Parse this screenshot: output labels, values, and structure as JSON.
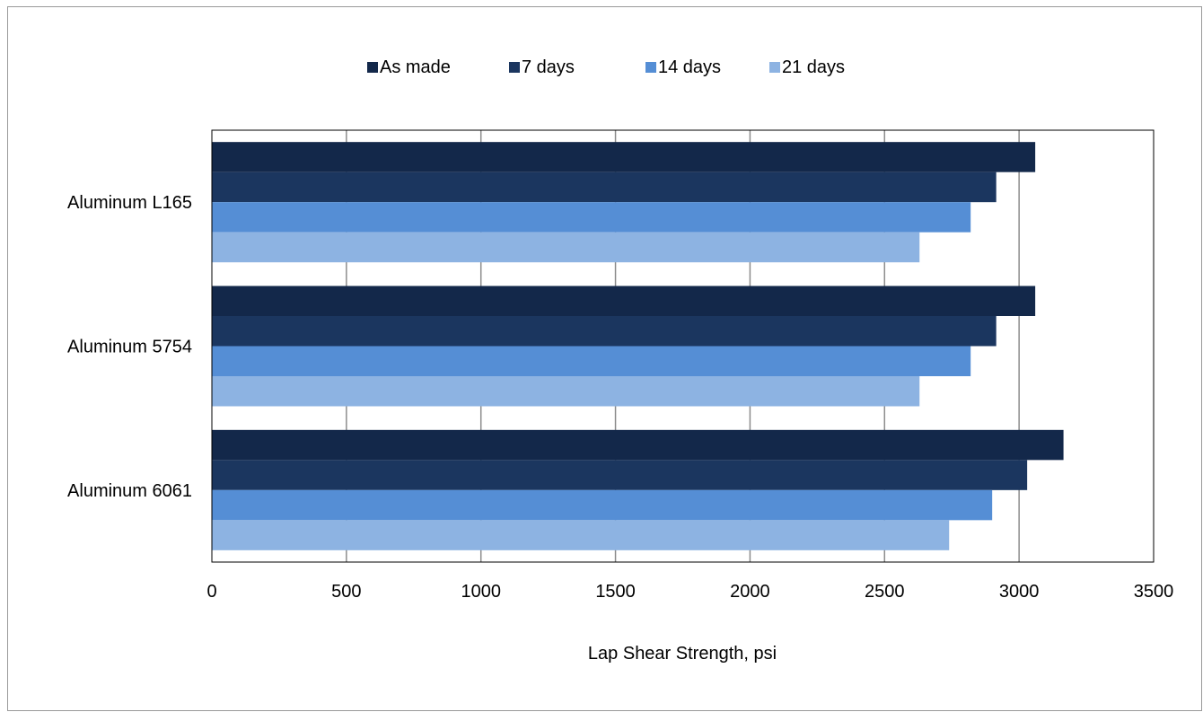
{
  "chart_data": {
    "type": "bar",
    "orientation": "horizontal",
    "categories": [
      "Aluminum L165",
      "Aluminum 5754",
      "Aluminum 6061"
    ],
    "series": [
      {
        "name": "As made",
        "color": "#13284a",
        "values": [
          3060,
          3060,
          3165
        ]
      },
      {
        "name": "7 days",
        "color": "#1b365f",
        "values": [
          2915,
          2915,
          3030
        ]
      },
      {
        "name": "14 days",
        "color": "#558ed5",
        "values": [
          2820,
          2820,
          2900
        ]
      },
      {
        "name": "21 days",
        "color": "#8db3e2",
        "values": [
          2630,
          2630,
          2740
        ]
      }
    ],
    "xlabel": "Lap Shear Strength, psi",
    "ylabel": "",
    "title": "",
    "xlim": [
      0,
      3500
    ],
    "xticks": [
      "0",
      "500",
      "1000",
      "1500",
      "2000",
      "2500",
      "3000",
      "3500"
    ],
    "grid": "vertical",
    "legend": "top-center"
  }
}
